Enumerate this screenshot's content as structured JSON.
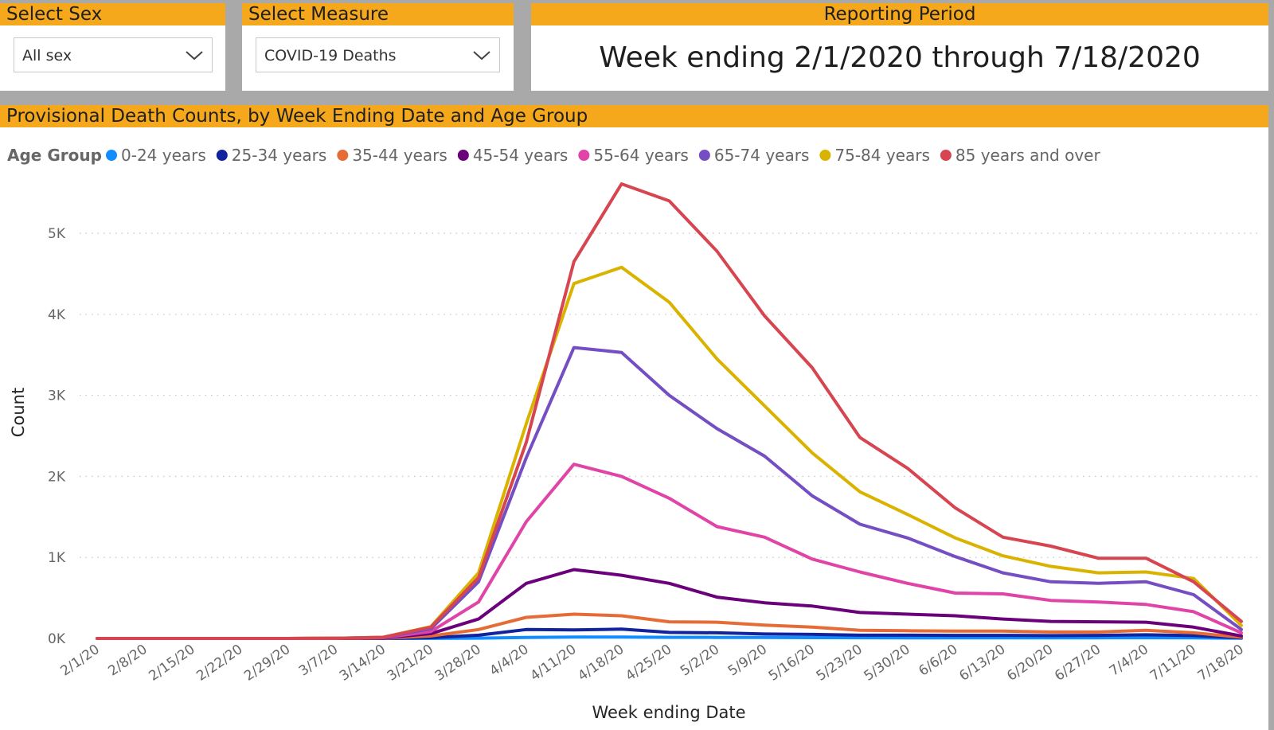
{
  "filters": {
    "sex": {
      "title": "Select Sex",
      "value": "All sex"
    },
    "measure": {
      "title": "Select Measure",
      "value": "COVID-19 Deaths"
    }
  },
  "period": {
    "title": "Reporting Period",
    "text": "Week ending 2/1/2020 through 7/18/2020"
  },
  "chart_title": "Provisional Death Counts, by Week Ending Date and Age Group",
  "icons": {
    "dropdown": "chevron-down-icon",
    "legend_marker": "circle-icon"
  },
  "chart_data": {
    "type": "line",
    "title": "Provisional Death Counts, by Week Ending Date and Age Group",
    "xlabel": "Week ending Date",
    "ylabel": "Count",
    "legend_title": "Age Group",
    "legend_position": "top-left",
    "grid": true,
    "ylim": [
      0,
      5600
    ],
    "yticks": [
      0,
      1000,
      2000,
      3000,
      4000,
      5000
    ],
    "ytick_labels": [
      "0K",
      "1K",
      "2K",
      "3K",
      "4K",
      "5K"
    ],
    "categories": [
      "2/1/20",
      "2/8/20",
      "2/15/20",
      "2/22/20",
      "2/29/20",
      "3/7/20",
      "3/14/20",
      "3/21/20",
      "3/28/20",
      "4/4/20",
      "4/11/20",
      "4/18/20",
      "4/25/20",
      "5/2/20",
      "5/9/20",
      "5/16/20",
      "5/23/20",
      "5/30/20",
      "6/6/20",
      "6/13/20",
      "6/20/20",
      "6/27/20",
      "7/4/20",
      "7/11/20",
      "7/18/20"
    ],
    "series": [
      {
        "name": "0-24 years",
        "color": "#118dff",
        "values": [
          0,
          0,
          0,
          0,
          0,
          0,
          0,
          1,
          4,
          12,
          18,
          17,
          14,
          13,
          12,
          10,
          9,
          8,
          8,
          8,
          7,
          8,
          9,
          8,
          2
        ]
      },
      {
        "name": "25-34 years",
        "color": "#12239e",
        "values": [
          0,
          0,
          0,
          0,
          0,
          0,
          1,
          10,
          40,
          110,
          105,
          115,
          75,
          70,
          55,
          50,
          40,
          40,
          38,
          38,
          35,
          38,
          45,
          35,
          8
        ]
      },
      {
        "name": "35-44 years",
        "color": "#e66c37",
        "values": [
          0,
          0,
          0,
          0,
          0,
          0,
          2,
          30,
          110,
          260,
          300,
          280,
          205,
          200,
          165,
          140,
          100,
          95,
          90,
          90,
          80,
          80,
          100,
          70,
          15
        ]
      },
      {
        "name": "45-54 years",
        "color": "#6b007b",
        "values": [
          0,
          0,
          0,
          0,
          0,
          1,
          5,
          60,
          240,
          680,
          850,
          780,
          680,
          510,
          440,
          400,
          320,
          300,
          280,
          240,
          210,
          205,
          200,
          140,
          30
        ]
      },
      {
        "name": "55-64 years",
        "color": "#e044a7",
        "values": [
          0,
          0,
          0,
          0,
          0,
          2,
          10,
          85,
          450,
          1440,
          2150,
          2000,
          1730,
          1380,
          1250,
          980,
          820,
          680,
          560,
          550,
          470,
          450,
          420,
          330,
          70
        ]
      },
      {
        "name": "65-74 years",
        "color": "#744ec2",
        "values": [
          0,
          0,
          0,
          0,
          0,
          3,
          12,
          120,
          700,
          2230,
          3590,
          3530,
          3000,
          2590,
          2250,
          1760,
          1410,
          1240,
          1010,
          810,
          700,
          680,
          700,
          540,
          110
        ]
      },
      {
        "name": "75-84 years",
        "color": "#d9b300",
        "values": [
          0,
          0,
          0,
          0,
          0,
          3,
          15,
          145,
          810,
          2650,
          4380,
          4580,
          4150,
          3450,
          2870,
          2290,
          1810,
          1530,
          1240,
          1020,
          890,
          810,
          820,
          740,
          160
        ]
      },
      {
        "name": "85 years and over",
        "color": "#d64550",
        "values": [
          0,
          0,
          0,
          0,
          0,
          3,
          15,
          140,
          750,
          2420,
          4650,
          5610,
          5400,
          4780,
          3980,
          3340,
          2480,
          2100,
          1610,
          1250,
          1140,
          990,
          990,
          700,
          210
        ]
      }
    ]
  }
}
